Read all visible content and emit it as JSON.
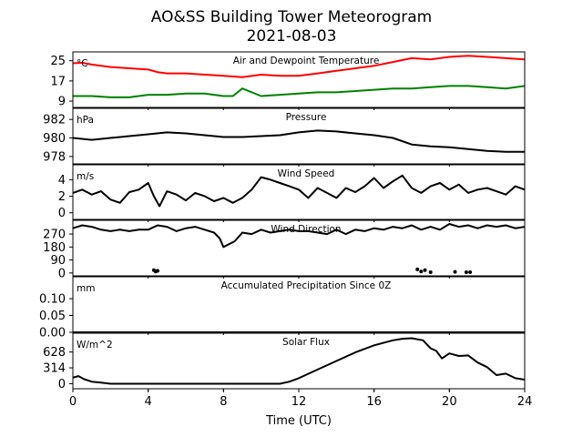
{
  "figure": {
    "title_line1": "AO&SS Building Tower Meteorogram",
    "title_line2": "2021-08-03",
    "xlabel": "Time (UTC)"
  },
  "chart_data": {
    "type": "line",
    "x_axis": {
      "label": "Time (UTC)",
      "range": [
        0,
        24
      ],
      "ticks": [
        0,
        4,
        8,
        12,
        16,
        20,
        24
      ],
      "tick_labels": [
        "0",
        "4",
        "8",
        "12",
        "16",
        "20",
        "24"
      ]
    },
    "panels": [
      {
        "id": "temp",
        "title": "Air and Dewpoint Temperature",
        "unit": "°C",
        "ylim": [
          6.5,
          28.5
        ],
        "yticks": [
          9,
          17,
          25
        ],
        "ytick_labels": [
          "9",
          "17",
          "25"
        ],
        "series": [
          {
            "color": "#ff0000",
            "x": [
              0,
              0.5,
              1,
              2,
              3,
              4,
              4.5,
              5,
              6,
              7,
              8,
              9,
              10,
              11,
              12,
              13,
              14,
              15,
              16,
              17,
              18,
              19,
              20,
              21,
              22,
              23,
              24
            ],
            "y": [
              24,
              24.2,
              23.5,
              22.5,
              22,
              21.5,
              20.5,
              20,
              20,
              19.5,
              19,
              18.5,
              19.5,
              19,
              19,
              20,
              21,
              22,
              23,
              24.5,
              26,
              25.5,
              26.5,
              27,
              26.5,
              26,
              25.5
            ]
          },
          {
            "color": "#008000",
            "x": [
              0,
              0.5,
              1,
              2,
              3,
              4,
              5,
              6,
              7,
              8,
              8.5,
              9,
              10,
              11,
              12,
              13,
              14,
              15,
              16,
              17,
              18,
              19,
              20,
              21,
              22,
              23,
              24
            ],
            "y": [
              11,
              11,
              11,
              10.5,
              10.5,
              11.5,
              11.5,
              12,
              12,
              11,
              11,
              14,
              11,
              11.5,
              12,
              12.5,
              12.5,
              13,
              13.5,
              14,
              14,
              14.5,
              15,
              15,
              14.5,
              14,
              15
            ]
          }
        ]
      },
      {
        "id": "pres",
        "title": "Pressure",
        "unit": "hPa",
        "ylim": [
          977.2,
          983.2
        ],
        "yticks": [
          978,
          980,
          982
        ],
        "ytick_labels": [
          "978",
          "980",
          "982"
        ],
        "series": [
          {
            "color": "#000000",
            "x": [
              0,
              1,
              2,
              3,
              4,
              5,
              6,
              7,
              8,
              9,
              10,
              11,
              12,
              13,
              14,
              15,
              16,
              17,
              18,
              19,
              20,
              21,
              22,
              23,
              24
            ],
            "y": [
              980.0,
              979.8,
              980.0,
              980.2,
              980.4,
              980.6,
              980.5,
              980.3,
              980.1,
              980.1,
              980.2,
              980.3,
              980.6,
              980.8,
              980.7,
              980.5,
              980.3,
              980.0,
              979.3,
              979.1,
              979.0,
              978.8,
              978.6,
              978.5,
              978.5
            ]
          }
        ]
      },
      {
        "id": "wspd",
        "title": "Wind Speed",
        "unit": "m/s",
        "ylim": [
          -0.8,
          5.8
        ],
        "yticks": [
          0,
          2,
          4
        ],
        "ytick_labels": [
          "0",
          "2",
          "4"
        ],
        "series": [
          {
            "color": "#000000",
            "x": [
              0,
              0.5,
              1,
              1.5,
              2,
              2.5,
              3,
              3.5,
              4,
              4.3,
              4.6,
              5,
              5.5,
              6,
              6.5,
              7,
              7.5,
              8,
              8.5,
              9,
              9.5,
              10,
              10.5,
              11,
              11.5,
              12,
              12.5,
              13,
              13.5,
              14,
              14.5,
              15,
              15.5,
              16,
              16.5,
              17,
              17.5,
              18,
              18.5,
              19,
              19.5,
              20,
              20.5,
              21,
              21.5,
              22,
              22.5,
              23,
              23.5,
              24
            ],
            "y": [
              2.4,
              2.8,
              2.2,
              2.6,
              1.6,
              1.2,
              2.5,
              2.8,
              3.6,
              2.0,
              0.8,
              2.6,
              2.2,
              1.5,
              2.4,
              2.0,
              1.4,
              1.8,
              1.2,
              1.8,
              2.8,
              4.3,
              4.0,
              3.6,
              3.2,
              2.8,
              1.8,
              3.0,
              2.4,
              1.8,
              3.0,
              2.5,
              3.2,
              4.2,
              3.0,
              3.8,
              4.5,
              3.0,
              2.4,
              3.2,
              3.6,
              2.8,
              3.4,
              2.4,
              2.8,
              3.0,
              2.6,
              2.2,
              3.2,
              2.8
            ]
          }
        ]
      },
      {
        "id": "wdir",
        "title": "Wind Direction",
        "unit": "",
        "ylim": [
          -20,
          365
        ],
        "yticks": [
          0,
          90,
          180,
          270
        ],
        "ytick_labels": [
          "0",
          "90",
          "180",
          "270"
        ],
        "series": [
          {
            "color": "#000000",
            "x": [
              0,
              0.5,
              1,
              1.5,
              2,
              2.5,
              3,
              3.5,
              4,
              4.5,
              5,
              5.5,
              6,
              6.5,
              7,
              7.5,
              7.8,
              8,
              8.3,
              8.6,
              9,
              9.5,
              10,
              10.5,
              11,
              11.5,
              12,
              12.5,
              13,
              13.5,
              14,
              14.5,
              15,
              15.5,
              16,
              16.5,
              17,
              17.5,
              18,
              18.5,
              19,
              19.5,
              20,
              20.5,
              21,
              21.5,
              22,
              22.5,
              23,
              23.5,
              24
            ],
            "y": [
              310,
              330,
              320,
              300,
              290,
              300,
              290,
              300,
              300,
              330,
              320,
              290,
              310,
              320,
              300,
              280,
              240,
              180,
              200,
              220,
              280,
              270,
              300,
              280,
              290,
              300,
              290,
              290,
              280,
              270,
              300,
              270,
              300,
              290,
              310,
              300,
              320,
              310,
              330,
              300,
              320,
              300,
              340,
              320,
              330,
              310,
              330,
              320,
              330,
              310,
              320
            ]
          }
        ],
        "points": {
          "color": "#000000",
          "x": [
            4.3,
            4.4,
            4.5,
            18.3,
            18.5,
            18.7,
            19.0,
            20.3,
            20.9,
            21.1
          ],
          "y": [
            20,
            10,
            15,
            25,
            10,
            20,
            5,
            8,
            5,
            5
          ]
        }
      },
      {
        "id": "precip",
        "title": "Accumulated Precipitation Since 0Z",
        "unit": "mm",
        "ylim": [
          0,
          0.165
        ],
        "yticks": [
          0.0,
          0.05,
          0.1
        ],
        "ytick_labels": [
          "0.00",
          "0.05",
          "0.10"
        ],
        "series": [
          {
            "color": "#000000",
            "x": [
              0,
              24
            ],
            "y": [
              0,
              0
            ]
          }
        ]
      },
      {
        "id": "solar",
        "title": "Solar Flux",
        "unit": "W/m^2",
        "ylim": [
          -100,
          1000
        ],
        "yticks": [
          0,
          314,
          628
        ],
        "ytick_labels": [
          "0",
          "314",
          "628"
        ],
        "series": [
          {
            "color": "#000000",
            "x": [
              0,
              0.3,
              0.6,
              1,
              1.5,
              2,
              4,
              6,
              8,
              10,
              10.5,
              11,
              11.5,
              12,
              13,
              14,
              15,
              16,
              17,
              17.5,
              18,
              18.3,
              18.6,
              19,
              19.3,
              19.6,
              20,
              20.5,
              21,
              21.5,
              22,
              22.5,
              23,
              23.5,
              24
            ],
            "y": [
              120,
              150,
              90,
              40,
              20,
              0,
              0,
              0,
              0,
              0,
              0,
              0,
              40,
              110,
              280,
              450,
              620,
              760,
              860,
              890,
              900,
              880,
              860,
              700,
              650,
              500,
              600,
              550,
              560,
              420,
              330,
              170,
              200,
              110,
              80
            ]
          }
        ]
      }
    ]
  }
}
